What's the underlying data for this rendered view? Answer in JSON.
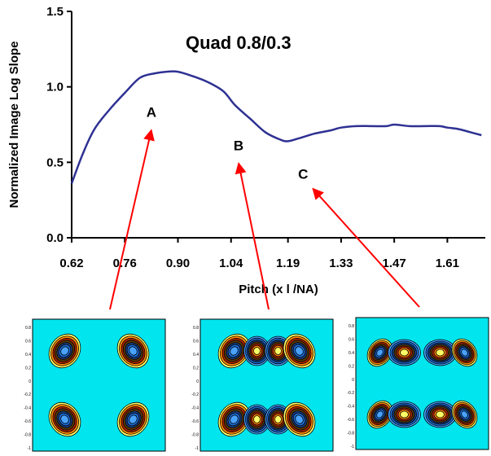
{
  "chart_data": {
    "type": "line",
    "title": "Quad 0.8/0.3",
    "xlabel": "Pitch (x l /NA)",
    "ylabel": "Normalized Image Log Slope",
    "x_ticks": [
      "0.62",
      "0.76",
      "0.90",
      "1.04",
      "1.19",
      "1.33",
      "1.47",
      "1.61"
    ],
    "y_ticks": [
      "0.0",
      "0.5",
      "1.0",
      "1.5"
    ],
    "xlim": [
      0.62,
      1.71
    ],
    "ylim": [
      0,
      1.5
    ],
    "grid": false,
    "series": [
      {
        "color": "#2e3192",
        "x": [
          0.62,
          0.65,
          0.68,
          0.72,
          0.76,
          0.8,
          0.84,
          0.87,
          0.9,
          0.94,
          0.98,
          1.02,
          1.05,
          1.09,
          1.13,
          1.17,
          1.19,
          1.22,
          1.26,
          1.3,
          1.33,
          1.37,
          1.41,
          1.45,
          1.47,
          1.51,
          1.55,
          1.59,
          1.61,
          1.64,
          1.67,
          1.7
        ],
        "y": [
          0.36,
          0.56,
          0.72,
          0.85,
          0.96,
          1.06,
          1.09,
          1.1,
          1.1,
          1.07,
          1.03,
          0.97,
          0.88,
          0.79,
          0.7,
          0.65,
          0.64,
          0.66,
          0.69,
          0.71,
          0.73,
          0.74,
          0.74,
          0.74,
          0.75,
          0.74,
          0.74,
          0.74,
          0.73,
          0.72,
          0.7,
          0.68
        ]
      }
    ],
    "annotations": [
      {
        "label": "A",
        "x": 0.83,
        "y": 0.8
      },
      {
        "label": "B",
        "x": 1.06,
        "y": 0.58
      },
      {
        "label": "C",
        "x": 1.23,
        "y": 0.39
      }
    ],
    "arrow_color": "#ff0000"
  },
  "insets": {
    "background": "#00e5ee",
    "tick_labels": [
      "0.8",
      "0.6",
      "0.4",
      "0.2",
      "0",
      "-0.2",
      "-0.4",
      "-0.6",
      "-0.8",
      "-1"
    ],
    "panels": [
      {
        "name": "A",
        "pattern": "quad"
      },
      {
        "name": "B",
        "pattern": "dipole-pairs"
      },
      {
        "name": "C",
        "pattern": "merged-lobes"
      }
    ]
  }
}
